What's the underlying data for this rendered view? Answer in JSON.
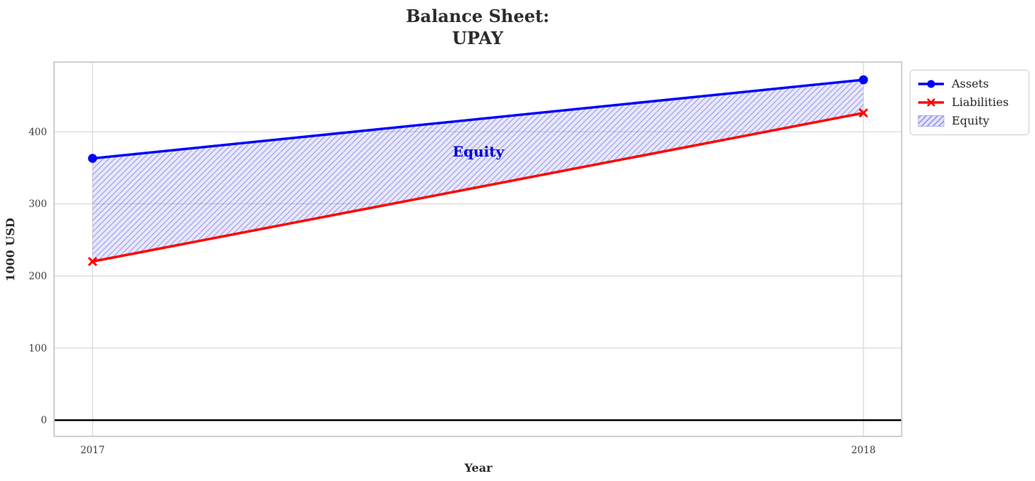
{
  "title": {
    "line1": "Balance Sheet:",
    "line2": "UPAY"
  },
  "axes": {
    "xlabel": "Year",
    "ylabel": "1000 USD"
  },
  "annotation": {
    "text": "Equity",
    "color": "#0000dd"
  },
  "legend": {
    "items": [
      {
        "label": "Assets"
      },
      {
        "label": "Liabilities"
      },
      {
        "label": "Equity"
      }
    ]
  },
  "colors": {
    "assets": "#0000ff",
    "liabilities": "#ff0000",
    "equity_fill": "#8080ea",
    "equity_fill_opacity": 0.18,
    "equity_hatch": "#5c5ce0",
    "equity_hatch_opacity": 0.45,
    "grid": "#d9d9d9",
    "spine": "#c8c8c8",
    "zero_line": "#000000"
  },
  "chart_data": {
    "type": "line",
    "title": "Balance Sheet: UPAY",
    "xlabel": "Year",
    "ylabel": "1000 USD",
    "x": [
      2017,
      2018
    ],
    "x_ticks": [
      2017,
      2018
    ],
    "y_ticks": [
      0,
      100,
      200,
      300,
      400
    ],
    "ylim": [
      -22.5,
      496.5
    ],
    "grid": true,
    "legend_position": "outside-top-right",
    "series": [
      {
        "name": "Assets",
        "values": [
          363,
          472
        ],
        "color": "#0000ff",
        "marker": "circle"
      },
      {
        "name": "Liabilities",
        "values": [
          220,
          426
        ],
        "color": "#ff0000",
        "marker": "x"
      },
      {
        "name": "Equity",
        "type": "area-between",
        "between": [
          "Liabilities",
          "Assets"
        ],
        "values": [
          143,
          46
        ],
        "label_annotation": "Equity"
      }
    ]
  }
}
